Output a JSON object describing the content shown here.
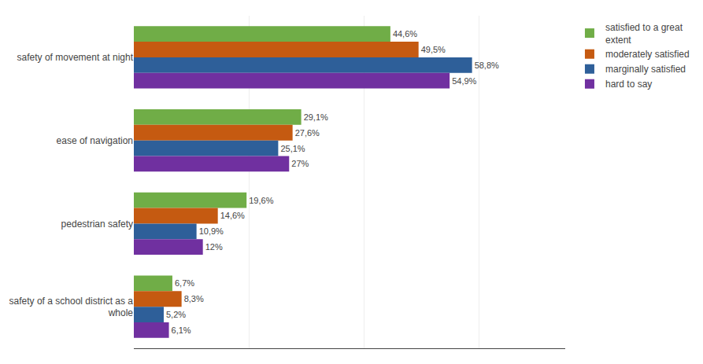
{
  "chart_data": {
    "type": "bar",
    "orientation": "horizontal",
    "categories": [
      "safety of movement at night",
      "ease of navigation",
      "pedestrian safety",
      "safety of a school district as a\nwhole"
    ],
    "series": [
      {
        "name": "satisfied to a great\nextent",
        "color": "#70ad47",
        "values": [
          44.6,
          29.1,
          19.6,
          6.7
        ],
        "value_labels": [
          "44,6%",
          "29,1%",
          "19,6%",
          "6,7%"
        ]
      },
      {
        "name": "moderately satisfied",
        "color": "#c55a11",
        "values": [
          49.5,
          27.6,
          14.6,
          8.3
        ],
        "value_labels": [
          "49,5%",
          "27,6%",
          "14,6%",
          "8,3%"
        ]
      },
      {
        "name": "marginally satisfied",
        "color": "#2e5f99",
        "values": [
          58.8,
          25.1,
          10.9,
          5.2
        ],
        "value_labels": [
          "58,8%",
          "25,1%",
          "10,9%",
          "5,2%"
        ]
      },
      {
        "name": "hard to say",
        "color": "#7030a0",
        "values": [
          54.9,
          27.0,
          12.0,
          6.1
        ],
        "value_labels": [
          "54,9%",
          "27%",
          "12%",
          "6,1%"
        ]
      }
    ],
    "xlim": [
      0,
      75
    ],
    "xticks": [
      0,
      20,
      40,
      60
    ],
    "grid": true,
    "tick_labels": "y",
    "data_labels": true,
    "legend": "upper right"
  }
}
